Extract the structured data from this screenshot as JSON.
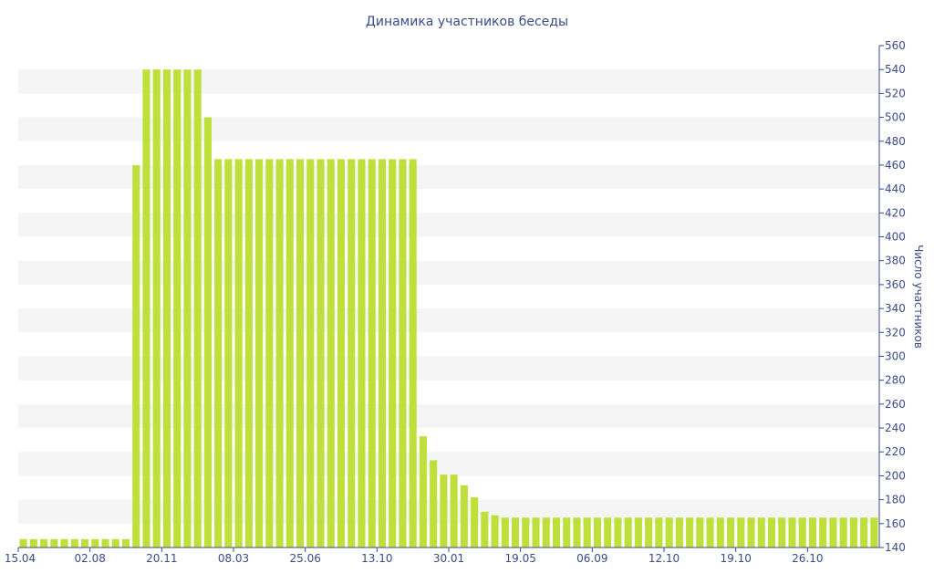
{
  "chart_data": {
    "type": "bar",
    "title": "Динамика участников беседы",
    "ylabel": "Число участников",
    "xlabel": "",
    "ylim": [
      140,
      560
    ],
    "y_ticks": [
      140,
      160,
      180,
      200,
      220,
      240,
      260,
      280,
      300,
      320,
      340,
      360,
      380,
      400,
      420,
      440,
      460,
      480,
      500,
      520,
      540,
      560
    ],
    "x_tick_labels": [
      "15.04",
      "02.08",
      "20.11",
      "08.03",
      "25.06",
      "13.10",
      "30.01",
      "19.05",
      "06.09",
      "12.10",
      "19.10",
      "26.10"
    ],
    "values": [
      147,
      147,
      147,
      147,
      147,
      147,
      147,
      147,
      147,
      147,
      147,
      460,
      540,
      540,
      540,
      540,
      540,
      540,
      500,
      465,
      465,
      465,
      465,
      465,
      465,
      465,
      465,
      465,
      465,
      465,
      465,
      465,
      465,
      465,
      465,
      465,
      465,
      465,
      465,
      233,
      213,
      201,
      201,
      192,
      182,
      170,
      167,
      165,
      165,
      165,
      165,
      165,
      165,
      165,
      165,
      165,
      165,
      165,
      165,
      165,
      165,
      165,
      165,
      165,
      165,
      165,
      165,
      165,
      165,
      165,
      165,
      165,
      165,
      165,
      165,
      165,
      165,
      165,
      165,
      165,
      165,
      165,
      165,
      165
    ],
    "bar_color": "#bfe03a",
    "band_color": "#f5f5f5",
    "axis_color": "#3a4a8a",
    "grid": "alternating bands",
    "y_axis_position": "right"
  }
}
